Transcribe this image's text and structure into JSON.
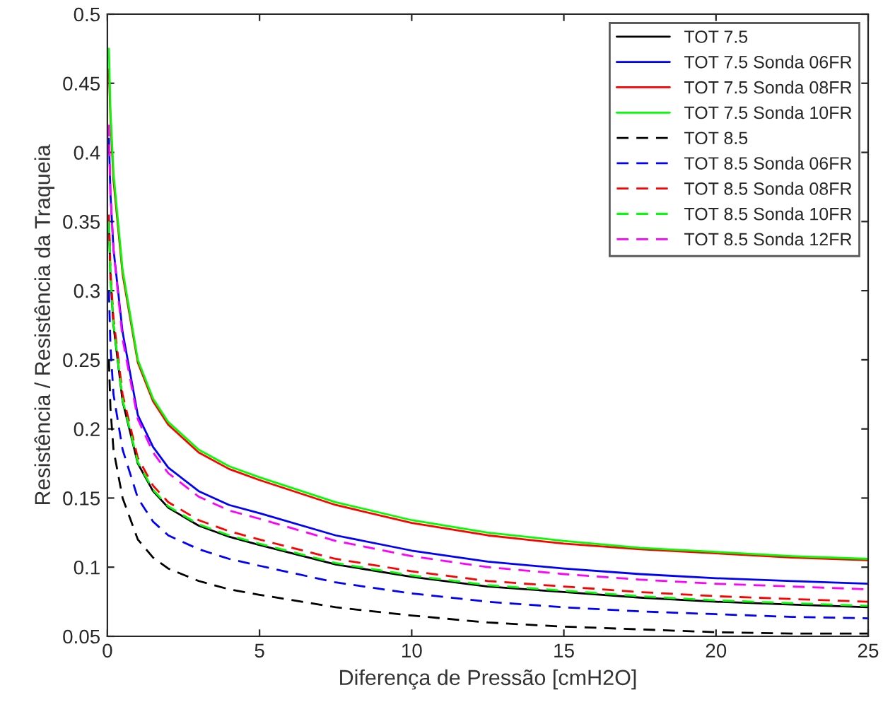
{
  "chart_data": {
    "type": "line",
    "xlabel": "Diferença de Pressão [cmH2O]",
    "ylabel": "Resistência / Resistência da Traqueia",
    "x": [
      0.05,
      0.1,
      0.2,
      0.5,
      1,
      1.5,
      2,
      3,
      4,
      5,
      7.5,
      10,
      12.5,
      15,
      17.5,
      20,
      22.5,
      25
    ],
    "xlim": [
      0,
      25
    ],
    "xticks": [
      0,
      5,
      10,
      15,
      20,
      25
    ],
    "ylim": [
      0.05,
      0.5
    ],
    "yticks": [
      0.05,
      0.1,
      0.15,
      0.2,
      0.25,
      0.3,
      0.35,
      0.4,
      0.45,
      0.5
    ],
    "grid": false,
    "legend": "top right",
    "series": [
      {
        "name": "TOT 7.5",
        "color": "#000000",
        "line_style": "solid",
        "values": [
          0.35,
          0.31,
          0.275,
          0.22,
          0.175,
          0.155,
          0.143,
          0.13,
          0.122,
          0.116,
          0.102,
          0.093,
          0.086,
          0.082,
          0.078,
          0.075,
          0.073,
          0.071
        ]
      },
      {
        "name": "TOT 7.5 Sonda 06FR",
        "color": "#0000ff",
        "line_style": "solid",
        "values": [
          0.41,
          0.37,
          0.33,
          0.27,
          0.21,
          0.187,
          0.172,
          0.155,
          0.145,
          0.139,
          0.123,
          0.112,
          0.104,
          0.099,
          0.095,
          0.092,
          0.09,
          0.088
        ]
      },
      {
        "name": "TOT 7.5 Sonda 08FR",
        "color": "#ff0000",
        "line_style": "solid",
        "values": [
          0.46,
          0.425,
          0.38,
          0.312,
          0.248,
          0.22,
          0.203,
          0.183,
          0.171,
          0.163,
          0.145,
          0.132,
          0.123,
          0.117,
          0.113,
          0.11,
          0.107,
          0.105
        ]
      },
      {
        "name": "TOT 7.5 Sonda 10FR",
        "color": "#00ff00",
        "line_style": "solid",
        "values": [
          0.475,
          0.43,
          0.385,
          0.315,
          0.25,
          0.222,
          0.205,
          0.185,
          0.173,
          0.165,
          0.147,
          0.134,
          0.125,
          0.119,
          0.114,
          0.111,
          0.108,
          0.106
        ]
      },
      {
        "name": "TOT 8.5",
        "color": "#000000",
        "line_style": "dashed",
        "values": [
          0.25,
          0.215,
          0.185,
          0.15,
          0.12,
          0.107,
          0.099,
          0.09,
          0.084,
          0.08,
          0.071,
          0.065,
          0.06,
          0.057,
          0.055,
          0.053,
          0.052,
          0.052
        ]
      },
      {
        "name": "TOT 8.5 Sonda 06FR",
        "color": "#0000ff",
        "line_style": "dashed",
        "values": [
          0.3,
          0.26,
          0.225,
          0.185,
          0.15,
          0.133,
          0.123,
          0.113,
          0.106,
          0.101,
          0.089,
          0.081,
          0.075,
          0.071,
          0.068,
          0.066,
          0.064,
          0.063
        ]
      },
      {
        "name": "TOT 8.5 Sonda 08FR",
        "color": "#ff0000",
        "line_style": "dashed",
        "values": [
          0.355,
          0.315,
          0.28,
          0.225,
          0.179,
          0.159,
          0.147,
          0.134,
          0.126,
          0.12,
          0.106,
          0.097,
          0.09,
          0.086,
          0.082,
          0.079,
          0.077,
          0.075
        ]
      },
      {
        "name": "TOT 8.5 Sonda 10FR",
        "color": "#00ff00",
        "line_style": "dashed",
        "values": [
          0.35,
          0.31,
          0.276,
          0.221,
          0.176,
          0.156,
          0.144,
          0.131,
          0.123,
          0.117,
          0.103,
          0.094,
          0.087,
          0.083,
          0.079,
          0.076,
          0.074,
          0.072
        ]
      },
      {
        "name": "TOT 8.5 Sonda 12FR",
        "color": "#ff00ff",
        "line_style": "dashed",
        "values": [
          0.42,
          0.37,
          0.33,
          0.265,
          0.207,
          0.183,
          0.168,
          0.151,
          0.141,
          0.135,
          0.119,
          0.108,
          0.1,
          0.095,
          0.091,
          0.088,
          0.086,
          0.084
        ]
      }
    ]
  }
}
